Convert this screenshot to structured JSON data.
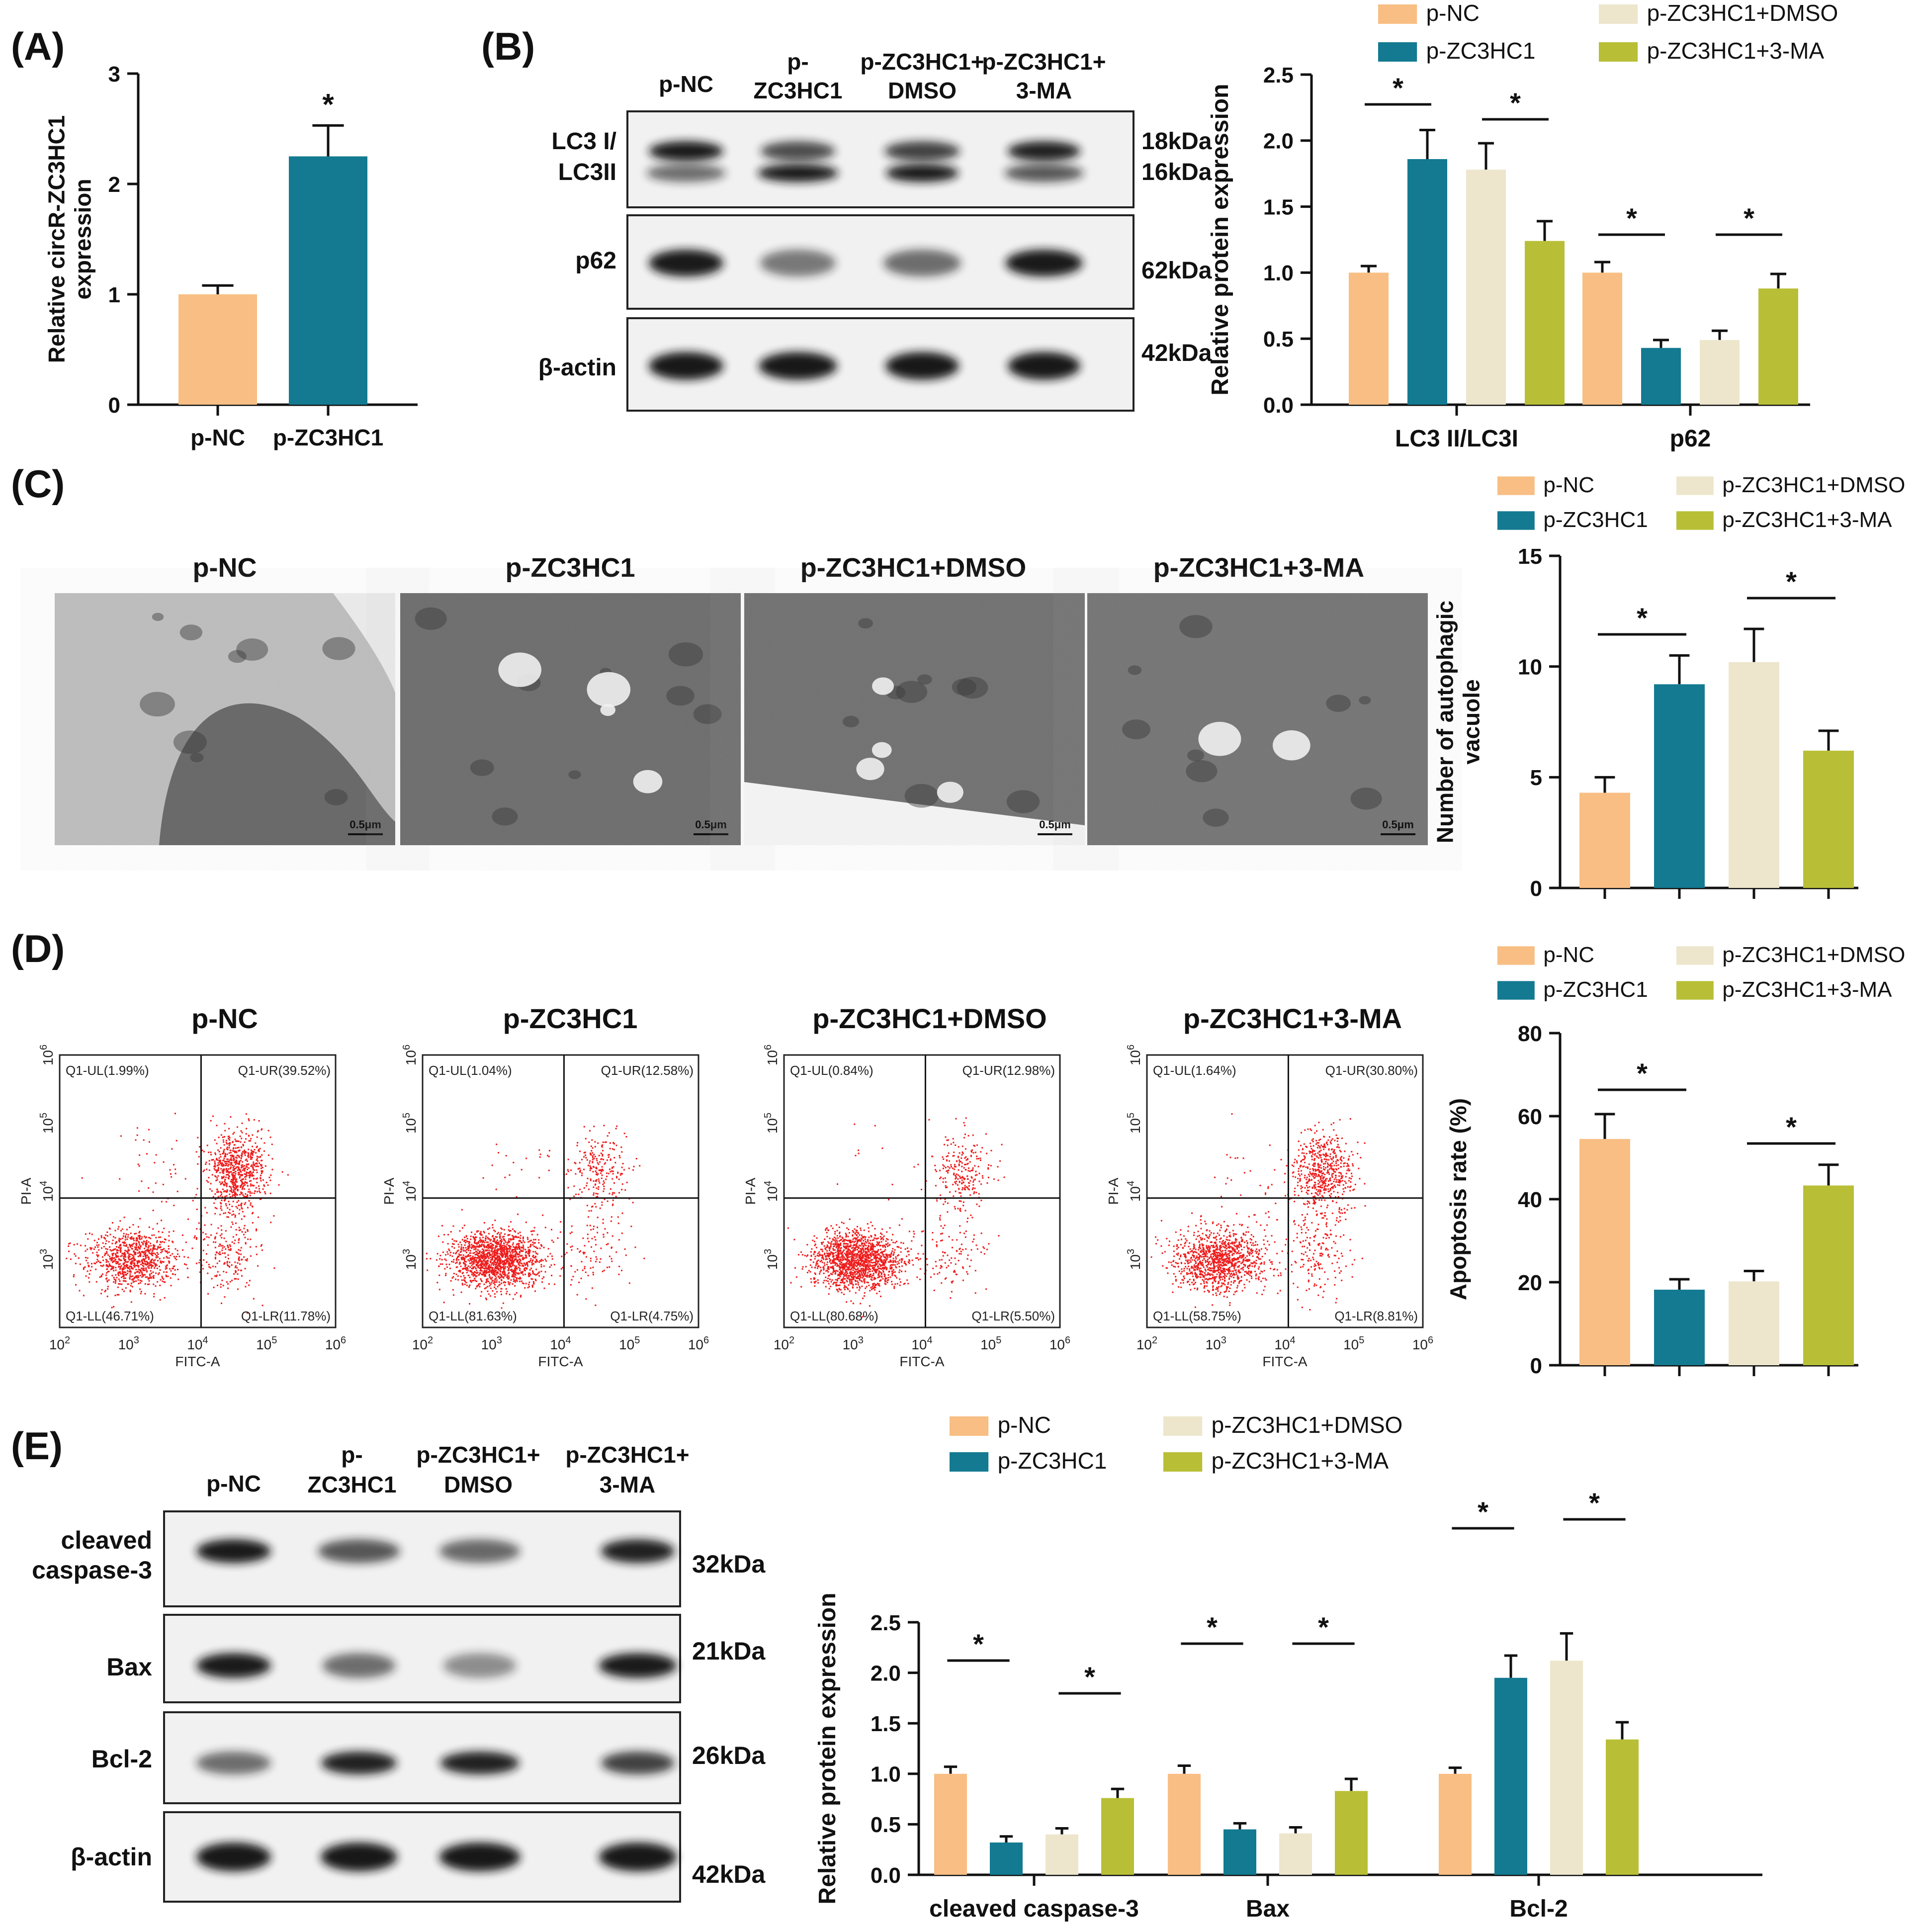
{
  "panels": {
    "A": "(A)",
    "B": "(B)",
    "C": "(C)",
    "D": "(D)",
    "E": "(E)"
  },
  "colors": {
    "p_NC": "#F8BE83",
    "p_ZC3HC1": "#137A91",
    "p_ZC3HC1_DMSO": "#EDE6CC",
    "p_ZC3HC1_3MA": "#B8BF36"
  },
  "legend": [
    "p-NC",
    "p-ZC3HC1",
    "p-ZC3HC1+DMSO",
    "p-ZC3HC1+3-MA"
  ],
  "sig_mark": "*",
  "westernB": {
    "lanes": [
      [
        "p-NC"
      ],
      [
        "p-",
        "ZC3HC1"
      ],
      [
        "p-ZC3HC1+",
        "DMSO"
      ],
      [
        "p-ZC3HC1+",
        "3-MA"
      ]
    ],
    "rows": [
      {
        "label": [
          "LC3 I/",
          "LC3II"
        ],
        "sizes": [
          "18kDa",
          "16kDa"
        ]
      },
      {
        "label": [
          "p62"
        ],
        "sizes": [
          "62kDa"
        ]
      },
      {
        "label": [
          "β-actin"
        ],
        "sizes": [
          "42kDa"
        ]
      }
    ]
  },
  "westernE": {
    "lanes": [
      [
        "p-NC"
      ],
      [
        "p-",
        "ZC3HC1"
      ],
      [
        "p-ZC3HC1+",
        "DMSO"
      ],
      [
        "p-ZC3HC1+",
        "3-MA"
      ]
    ],
    "rows": [
      {
        "label": [
          "cleaved",
          "caspase-3"
        ],
        "sizes": [
          "32kDa"
        ]
      },
      {
        "label": [
          "Bax"
        ],
        "sizes": [
          "21kDa"
        ]
      },
      {
        "label": [
          "Bcl-2"
        ],
        "sizes": [
          "26kDa"
        ]
      },
      {
        "label": [
          "β-actin"
        ],
        "sizes": [
          "42kDa"
        ]
      }
    ]
  },
  "tem": {
    "titles": [
      "p-NC",
      "p-ZC3HC1",
      "p-ZC3HC1+DMSO",
      "p-ZC3HC1+3-MA"
    ],
    "scalebar": "0.5μm"
  },
  "flow": {
    "titles": [
      "p-NC",
      "p-ZC3HC1",
      "p-ZC3HC1+DMSO",
      "p-ZC3HC1+3-MA"
    ],
    "xlabel": "FITC-A",
    "ylabel": "PI-A",
    "xticks": [
      "10",
      "10",
      "10",
      "10",
      "10"
    ],
    "tick_exponents": [
      "2",
      "3",
      "4",
      "5",
      "6"
    ],
    "quadrants": [
      {
        "UL": "Q1-UL(1.99%)",
        "UR": "Q1-UR(39.52%)",
        "LL": "Q1-LL(46.71%)",
        "LR": "Q1-LR(11.78%)"
      },
      {
        "UL": "Q1-UL(1.04%)",
        "UR": "Q1-UR(12.58%)",
        "LL": "Q1-LL(81.63%)",
        "LR": "Q1-LR(4.75%)"
      },
      {
        "UL": "Q1-UL(0.84%)",
        "UR": "Q1-UR(12.98%)",
        "LL": "Q1-LL(80.68%)",
        "LR": "Q1-LR(5.50%)"
      },
      {
        "UL": "Q1-UL(1.64%)",
        "UR": "Q1-UR(30.80%)",
        "LL": "Q1-LL(58.75%)",
        "LR": "Q1-LR(8.81%)"
      }
    ]
  },
  "chart_data": [
    {
      "id": "A",
      "type": "bar",
      "categories": [
        "p-NC",
        "p-ZC3HC1"
      ],
      "values": [
        1.0,
        2.25
      ],
      "errors": [
        0.08,
        0.28
      ],
      "ylabel": [
        "Relative circR-ZC3HC1",
        "expression"
      ],
      "ylim": [
        0,
        3
      ],
      "yticks": [
        "0",
        "1",
        "2",
        "3"
      ],
      "significance": [
        {
          "bar": 1,
          "label": "*"
        }
      ]
    },
    {
      "id": "B",
      "type": "bar",
      "categories": [
        "LC3 II/LC3I",
        "p62"
      ],
      "series": [
        {
          "name": "p-NC",
          "values": [
            1.0,
            1.0
          ],
          "errors": [
            0.05,
            0.08
          ]
        },
        {
          "name": "p-ZC3HC1",
          "values": [
            1.86,
            0.43
          ],
          "errors": [
            0.22,
            0.06
          ]
        },
        {
          "name": "p-ZC3HC1+DMSO",
          "values": [
            1.78,
            0.49
          ],
          "errors": [
            0.2,
            0.07
          ]
        },
        {
          "name": "p-ZC3HC1+3-MA",
          "values": [
            1.24,
            0.88
          ],
          "errors": [
            0.15,
            0.11
          ]
        }
      ],
      "ylabel": [
        "Relative protein expression"
      ],
      "ylim": [
        0,
        2.5
      ],
      "yticks": [
        "0.0",
        "0.5",
        "1.0",
        "1.5",
        "2.0",
        "2.5"
      ],
      "significance": [
        {
          "group": 0,
          "from": 0,
          "to": 1,
          "label": "*"
        },
        {
          "group": 0,
          "from": 2,
          "to": 3,
          "label": "*"
        },
        {
          "group": 1,
          "from": 0,
          "to": 1,
          "label": "*"
        },
        {
          "group": 1,
          "from": 2,
          "to": 3,
          "label": "*"
        }
      ]
    },
    {
      "id": "C",
      "type": "bar",
      "categories": [
        "p-NC",
        "p-ZC3HC1",
        "p-ZC3HC1+DMSO",
        "p-ZC3HC1+3-MA"
      ],
      "values": [
        4.3,
        9.2,
        10.2,
        6.2
      ],
      "errors": [
        0.7,
        1.3,
        1.5,
        0.9
      ],
      "ylabel": [
        "Number of autophagic",
        "vacuole"
      ],
      "ylim": [
        0,
        15
      ],
      "yticks": [
        "0",
        "5",
        "10",
        "15"
      ],
      "significance": [
        {
          "from": 0,
          "to": 1,
          "label": "*",
          "rel": 1
        },
        {
          "from": 2,
          "to": 3,
          "label": "*",
          "rel": 3
        }
      ]
    },
    {
      "id": "D",
      "type": "bar",
      "categories": [
        "p-NC",
        "p-ZC3HC1",
        "p-ZC3HC1+DMSO",
        "p-ZC3HC1+3-MA"
      ],
      "values": [
        54.5,
        18.2,
        20.2,
        43.3
      ],
      "errors": [
        6,
        2.5,
        2.5,
        5
      ],
      "ylabel": [
        "Apoptosis rate (%)"
      ],
      "ylim": [
        0,
        80
      ],
      "yticks": [
        "0",
        "20",
        "40",
        "60",
        "80"
      ],
      "significance": [
        {
          "from": 0,
          "to": 1,
          "label": "*",
          "rel": 0
        },
        {
          "from": 2,
          "to": 3,
          "label": "*",
          "rel": 3
        }
      ]
    },
    {
      "id": "E",
      "type": "bar",
      "categories": [
        "cleaved caspase-3",
        "Bax",
        "Bcl-2"
      ],
      "series": [
        {
          "name": "p-NC",
          "values": [
            1.0,
            1.0,
            1.0
          ],
          "errors": [
            0.07,
            0.08,
            0.06
          ]
        },
        {
          "name": "p-ZC3HC1",
          "values": [
            0.32,
            0.45,
            1.95
          ],
          "errors": [
            0.06,
            0.06,
            0.22
          ]
        },
        {
          "name": "p-ZC3HC1+DMSO",
          "values": [
            0.4,
            0.41,
            2.12
          ],
          "errors": [
            0.06,
            0.06,
            0.27
          ]
        },
        {
          "name": "p-ZC3HC1+3-MA",
          "values": [
            0.76,
            0.83,
            1.34
          ],
          "errors": [
            0.09,
            0.12,
            0.17
          ]
        }
      ],
      "ylabel": [
        "Relative protein expression"
      ],
      "ylim": [
        0,
        2.5
      ],
      "yticks": [
        "0.0",
        "0.5",
        "1.0",
        "1.5",
        "2.0",
        "2.5"
      ],
      "significance": [
        {
          "group": 0,
          "from": 0,
          "to": 1,
          "label": "*"
        },
        {
          "group": 0,
          "from": 2,
          "to": 3,
          "label": "*"
        },
        {
          "group": 1,
          "from": 0,
          "to": 1,
          "label": "*"
        },
        {
          "group": 1,
          "from": 2,
          "to": 3,
          "label": "*"
        },
        {
          "group": 2,
          "from": 0,
          "to": 1,
          "label": "*"
        },
        {
          "group": 2,
          "from": 2,
          "to": 3,
          "label": "*"
        }
      ]
    }
  ]
}
